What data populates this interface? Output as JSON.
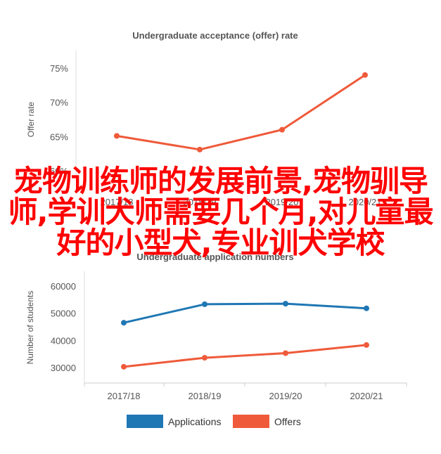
{
  "chart_data": [
    {
      "type": "line",
      "title": "Undergraduate acceptance (offer) rate",
      "ylabel": "Offer rate",
      "categories": [
        "2017/18",
        "2018/19",
        "2019/20",
        "2020/21"
      ],
      "series": [
        {
          "values": [
            65.1,
            63.1,
            66.0,
            74.0
          ],
          "color": "#ef5a3a"
        }
      ],
      "ylim": [
        60,
        75
      ],
      "yticks": [
        "60%",
        "65%",
        "70%",
        "75%"
      ],
      "ytick_values": [
        60,
        65,
        70,
        75
      ]
    },
    {
      "type": "line",
      "title": "Undergraduate application numbers",
      "ylabel": "Number of students",
      "categories": [
        "2017/18",
        "2018/19",
        "2019/20",
        "2020/21"
      ],
      "series": [
        {
          "name": "Applications",
          "values": [
            46500,
            53300,
            53500,
            51800
          ],
          "color": "#1f77b4"
        },
        {
          "name": "Offers",
          "values": [
            30300,
            33600,
            35300,
            38300
          ],
          "color": "#ef5a3a"
        }
      ],
      "ylim": [
        30000,
        60000
      ],
      "yticks": [
        "30000",
        "40000",
        "50000",
        "60000"
      ],
      "ytick_values": [
        30000,
        40000,
        50000,
        60000
      ],
      "legend": "bottom"
    }
  ],
  "overlay_text": "宠物训练师的发展前景,宠物驯导师,学训犬师需要几个月,对儿童最好的小型犬,专业训犬学校"
}
